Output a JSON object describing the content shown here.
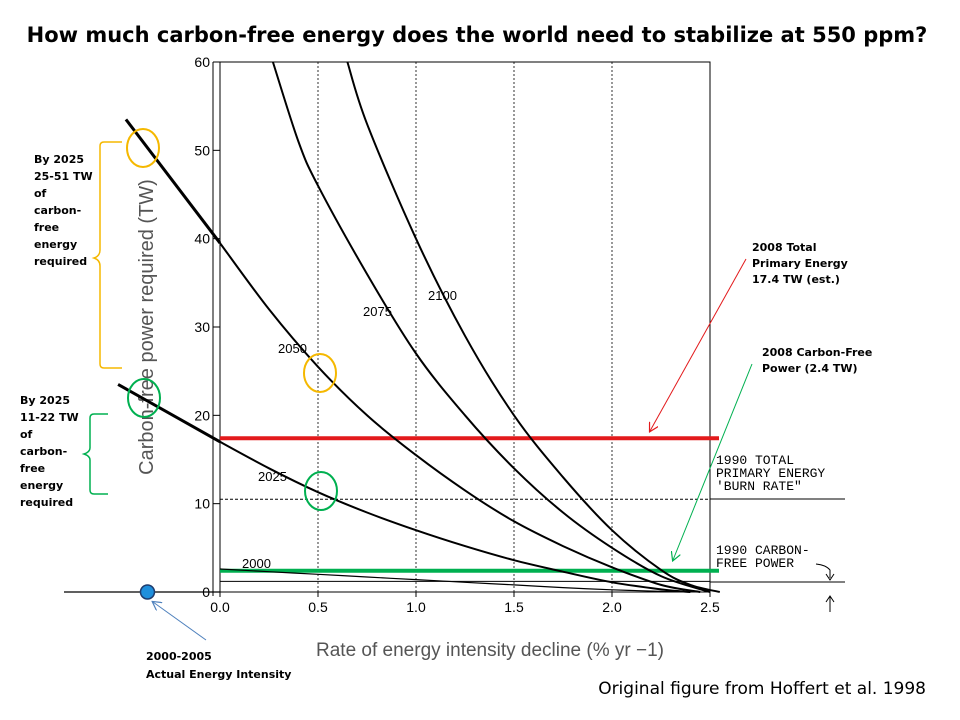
{
  "title": "How much carbon-free energy does the world need to stabilize at 550 ppm?",
  "credit": "Original figure from Hoffert et al. 1998",
  "chart_data": {
    "type": "line",
    "xlabel": "Rate of energy intensity decline (% yr −1)",
    "ylabel": "Carbon-free power required (TW)",
    "xlim": [
      0,
      2.5
    ],
    "ylim": [
      0,
      60
    ],
    "xticks": [
      "0.0",
      "0.5",
      "1.0",
      "1.5",
      "2.0",
      "2.5"
    ],
    "yticks": [
      "0",
      "10",
      "20",
      "30",
      "40",
      "50",
      "60"
    ],
    "grid": "vertical dotted",
    "series": [
      {
        "name": "2000",
        "x": [
          0,
          0.25,
          0.5,
          0.75,
          1.0,
          1.25,
          1.5,
          1.75,
          2.0,
          2.25,
          2.45
        ],
        "y": [
          2.6,
          2.3,
          2.0,
          1.7,
          1.4,
          1.1,
          0.8,
          0.5,
          0.25,
          0.08,
          0
        ]
      },
      {
        "name": "2025",
        "x": [
          0,
          0.25,
          0.5,
          0.75,
          1.0,
          1.25,
          1.5,
          1.75,
          2.0,
          2.25,
          2.4
        ],
        "y": [
          17,
          14,
          11.3,
          9,
          7,
          5.2,
          3.6,
          2.3,
          1.1,
          0.3,
          0
        ]
      },
      {
        "name": "2050",
        "x": [
          0,
          0.25,
          0.5,
          0.75,
          1.0,
          1.25,
          1.5,
          1.75,
          2.0,
          2.25,
          2.45
        ],
        "y": [
          39.5,
          32,
          25.5,
          20,
          15.5,
          11.5,
          8,
          5.2,
          2.8,
          0.8,
          0
        ]
      },
      {
        "name": "2075",
        "x": [
          0.27,
          0.4,
          0.5,
          0.75,
          1.0,
          1.25,
          1.5,
          1.75,
          2.0,
          2.25,
          2.5
        ],
        "y": [
          60,
          51,
          46,
          36,
          27,
          20,
          14,
          9,
          5,
          1.8,
          0
        ]
      },
      {
        "name": "2100",
        "x": [
          0.65,
          0.75,
          1.0,
          1.25,
          1.5,
          1.75,
          2.0,
          2.25,
          2.4,
          2.55
        ],
        "y": [
          60,
          53,
          40,
          29,
          20,
          13,
          7,
          2.5,
          0.8,
          0
        ]
      }
    ],
    "extrapolations": [
      {
        "x": [
          -0.48,
          0
        ],
        "y": [
          53.5,
          39.5
        ]
      },
      {
        "x": [
          -0.52,
          0
        ],
        "y": [
          23.5,
          17
        ]
      }
    ],
    "reference_lines": [
      {
        "label_lines": [
          "1990 TOTAL",
          "PRIMARY ENERGY",
          "'BURN RATE\""
        ],
        "y": 10.5,
        "style": "dashed"
      },
      {
        "label_lines": [
          "1990 CARBON-",
          "FREE POWER"
        ],
        "y": 1.2,
        "style": "solid"
      },
      {
        "label_lines": [
          "2008 Total",
          "Primary Energy",
          "17.4 TW (est.)"
        ],
        "y": 17.4,
        "color": "#e31a1c"
      },
      {
        "label_lines": [
          "2008 Carbon-Free",
          "Power (2.4 TW)"
        ],
        "y": 2.4,
        "color": "#00b050"
      }
    ],
    "annotations": [
      {
        "label_lines": [
          "By 2025",
          "25-51 TW",
          "of",
          "carbon-",
          "free",
          "energy",
          "required"
        ],
        "color": "#f5b800"
      },
      {
        "label_lines": [
          "By 2025",
          "11-22 TW",
          "of",
          "carbon-",
          "free",
          "energy",
          "required"
        ],
        "color": "#00b050"
      },
      {
        "label_lines": [
          "2000-2005",
          "Actual Energy Intensity"
        ],
        "x": -0.37,
        "y": 0
      }
    ]
  }
}
